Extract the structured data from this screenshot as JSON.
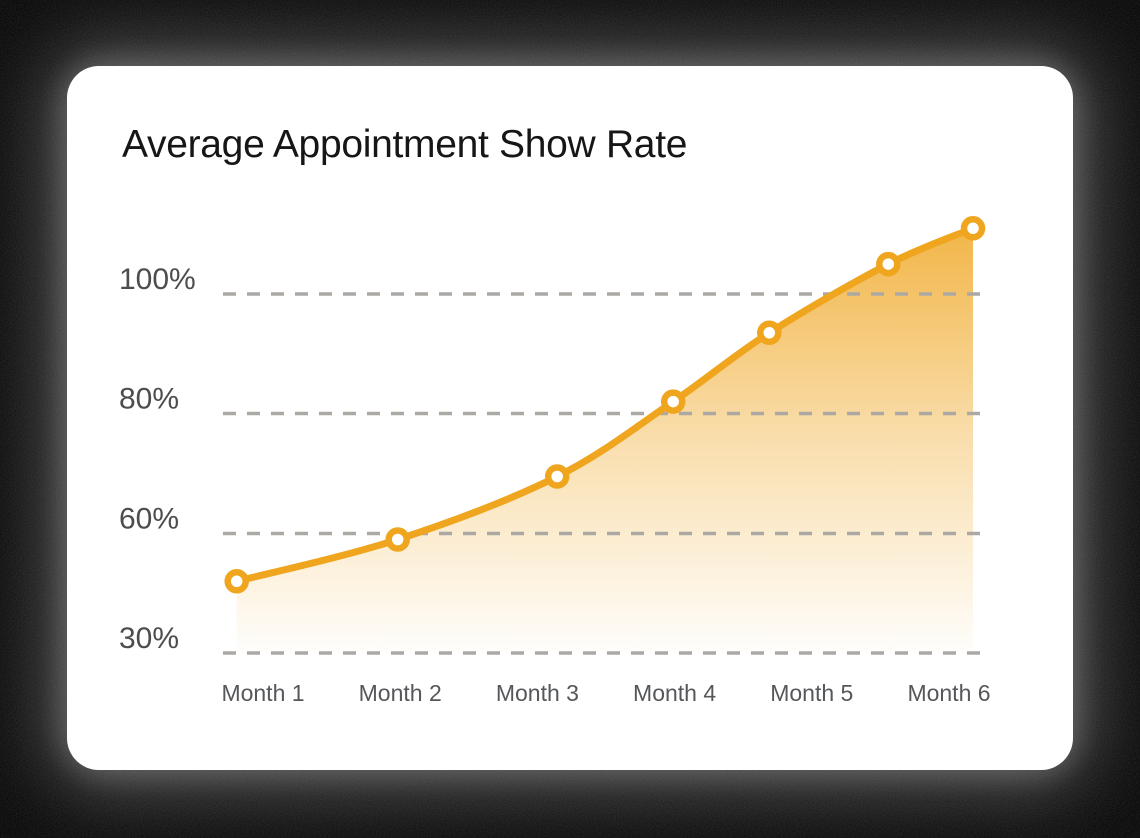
{
  "page": {
    "background_color": "#000000"
  },
  "card": {
    "title": "Average Appointment Show Rate",
    "background_color": "#FFFFFF"
  },
  "chart_data": {
    "type": "area",
    "title": "Average Appointment Show Rate",
    "x_categories": [
      "Month 1",
      "Month 2",
      "Month 3",
      "Month 4",
      "Month 5",
      "Month 6"
    ],
    "y_ticks": [
      {
        "label": "100%",
        "value": 100
      },
      {
        "label": "80%",
        "value": 80
      },
      {
        "label": "60%",
        "value": 60
      },
      {
        "label": "30%",
        "value": 30
      }
    ],
    "y_axis": {
      "type": "piecewise-nonlinear",
      "note": "tick values 30/60/80/100 are drawn at equal vertical spacing; horizontal dashed gridlines only; no vertical gridlines"
    },
    "grid": "horizontal-dashed",
    "legend_position": "none",
    "series": [
      {
        "name": "Average appointment show rate",
        "points": [
          {
            "x_fraction": 0.018,
            "value_pct": 48
          },
          {
            "x_fraction": 0.229,
            "value_pct": 58.5
          },
          {
            "x_fraction": 0.438,
            "value_pct": 69.5
          },
          {
            "x_fraction": 0.59,
            "value_pct": 82
          },
          {
            "x_fraction": 0.716,
            "value_pct": 93.5
          },
          {
            "x_fraction": 0.872,
            "value_pct": 105
          },
          {
            "x_fraction": 0.983,
            "value_pct": 111
          }
        ],
        "marker_style": "orange ring with white center",
        "area_fill": "vertical gradient from line color to transparent, clipped at 30% gridline"
      }
    ],
    "colors": {
      "line": "#EFA51E",
      "grid": "#ACA9A5",
      "y_tick_label": "#4D4D4D",
      "x_tick_label": "#55575A",
      "title": "#161616",
      "marker_fill": "#FFFFFF"
    }
  }
}
